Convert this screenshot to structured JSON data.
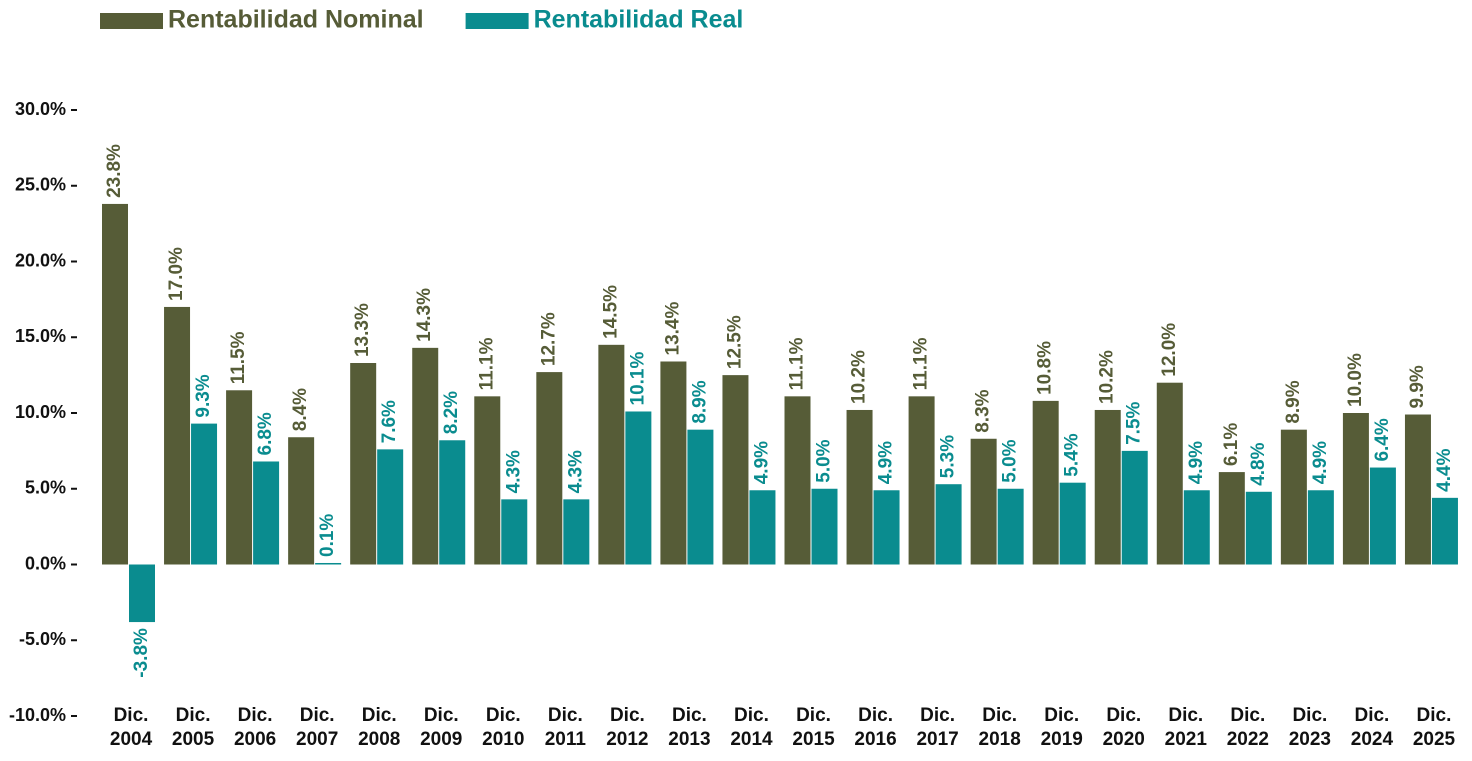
{
  "chart_data": {
    "type": "bar",
    "categories": [
      "Dic. 2004",
      "Dic. 2005",
      "Dic. 2006",
      "Dic. 2007",
      "Dic. 2008",
      "Dic. 2009",
      "Dic. 2010",
      "Dic. 2011",
      "Dic. 2012",
      "Dic. 2013",
      "Dic. 2014",
      "Dic. 2015",
      "Dic. 2016",
      "Dic. 2017",
      "Dic. 2018",
      "Dic. 2019",
      "Dic. 2020",
      "Dic. 2021",
      "Dic. 2022",
      "Dic. 2023",
      "Dic. 2024",
      "Dic. 2025"
    ],
    "series": [
      {
        "name": "Rentabilidad Nominal",
        "color": "#565c37",
        "values": [
          23.8,
          17.0,
          11.5,
          8.4,
          13.3,
          14.3,
          11.1,
          12.7,
          14.5,
          13.4,
          12.5,
          11.1,
          10.2,
          11.1,
          8.3,
          10.8,
          10.2,
          12.0,
          6.1,
          8.9,
          10.0,
          9.9
        ],
        "value_labels": [
          "23.8%",
          "17.0%",
          "11.5%",
          "8.4%",
          "13.3%",
          "14.3%",
          "11.1%",
          "12.7%",
          "14.5%",
          "13.4%",
          "12.5%",
          "11.1%",
          "10.2%",
          "11.1%",
          "8.3%",
          "10.8%",
          "10.2%",
          "12.0%",
          "6.1%",
          "8.9%",
          "10.0%",
          "9.9%"
        ]
      },
      {
        "name": "Rentabilidad Real",
        "color": "#0a8c8f",
        "values": [
          -3.8,
          9.3,
          6.8,
          0.1,
          7.6,
          8.2,
          4.3,
          4.3,
          10.1,
          8.9,
          4.9,
          5.0,
          4.9,
          5.3,
          5.0,
          5.4,
          7.5,
          4.9,
          4.8,
          4.9,
          6.4,
          4.4
        ],
        "value_labels": [
          "-3.8%",
          "9.3%",
          "6.8%",
          "0.1%",
          "7.6%",
          "8.2%",
          "4.3%",
          "4.3%",
          "10.1%",
          "8.9%",
          "4.9%",
          "5.0%",
          "4.9%",
          "5.3%",
          "5.0%",
          "5.4%",
          "7.5%",
          "4.9%",
          "4.8%",
          "4.9%",
          "6.4%",
          "4.4%"
        ]
      }
    ],
    "ylim": [
      -10,
      30
    ],
    "yticks": [
      {
        "value": -10,
        "label": "-10.0%"
      },
      {
        "value": -5,
        "label": "-5.0%"
      },
      {
        "value": 0,
        "label": "0.0%"
      },
      {
        "value": 5,
        "label": "5.0%"
      },
      {
        "value": 10,
        "label": "10.0%"
      },
      {
        "value": 15,
        "label": "15.0%"
      },
      {
        "value": 20,
        "label": "20.0%"
      },
      {
        "value": 25,
        "label": "25.0%"
      },
      {
        "value": 30,
        "label": "30.0%"
      }
    ],
    "legend": "top-left",
    "grid": false
  }
}
